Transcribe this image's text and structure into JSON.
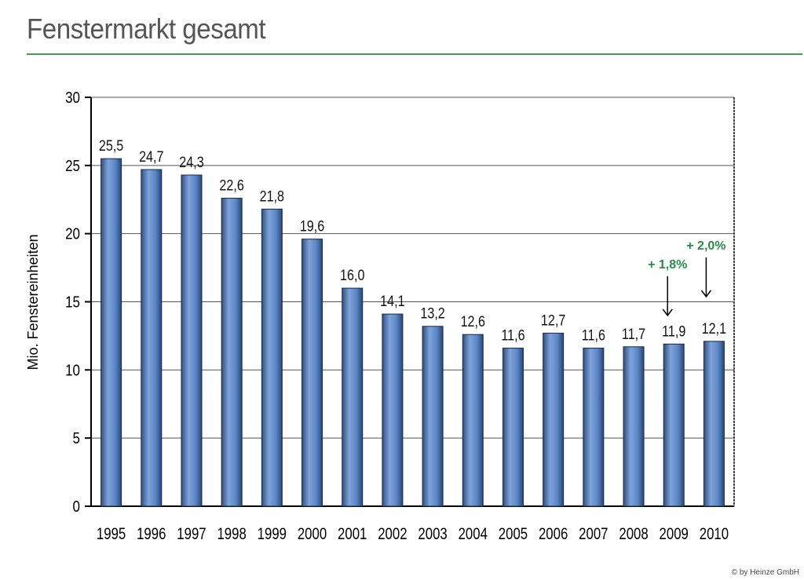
{
  "header": {
    "title": "Fenstermarkt gesamt"
  },
  "footer": {
    "copyright": "© by Heinze GmbH"
  },
  "chart_data": {
    "type": "bar",
    "title": "",
    "xlabel": "",
    "ylabel": "Mio. Fenstereinheiten",
    "ylim": [
      0,
      30
    ],
    "yticks": [
      0,
      5,
      10,
      15,
      20,
      25,
      30
    ],
    "grid": true,
    "categories": [
      "1995",
      "1996",
      "1997",
      "1998",
      "1999",
      "2000",
      "2001",
      "2002",
      "2003",
      "2004",
      "2005",
      "2006",
      "2007",
      "2008",
      "2009",
      "2010"
    ],
    "values": [
      25.5,
      24.7,
      24.3,
      22.6,
      21.8,
      19.6,
      16.0,
      14.1,
      13.2,
      12.6,
      11.6,
      12.7,
      11.6,
      11.7,
      11.9,
      12.1
    ],
    "data_labels": [
      "25,5",
      "24,7",
      "24,3",
      "22,6",
      "21,8",
      "19,6",
      "16,0",
      "14,1",
      "13,2",
      "12,6",
      "11,6",
      "12,7",
      "11,6",
      "11,7",
      "11,9",
      "12,1"
    ],
    "bar_color": "#5b86c5",
    "annotations": [
      {
        "category": "2009",
        "text": "+ 1,8%",
        "color": "#2a8a4a"
      },
      {
        "category": "2010",
        "text": "+ 2,0%",
        "color": "#2a8a4a"
      }
    ]
  }
}
